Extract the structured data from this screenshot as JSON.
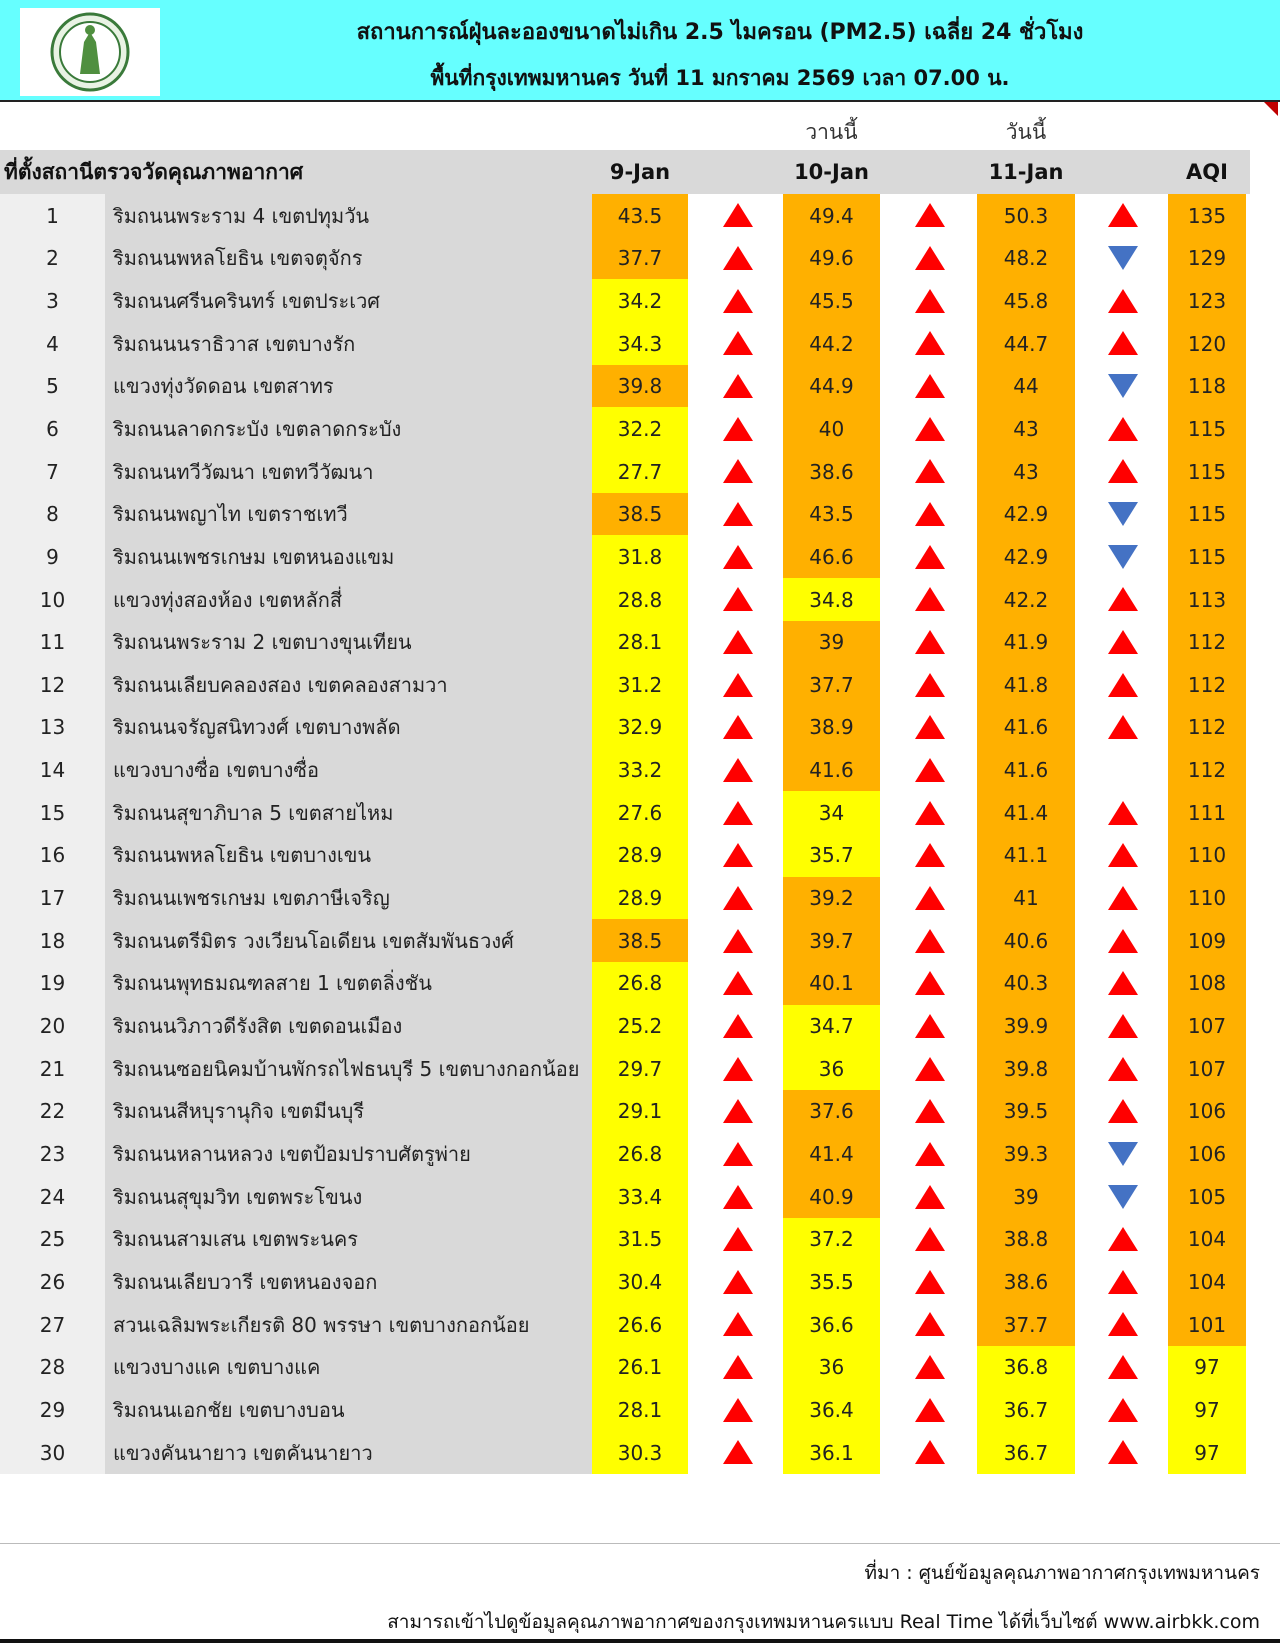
{
  "header": {
    "title": "สถานการณ์ฝุ่นละอองขนาดไม่เกิน 2.5 ไมครอน (PM2.5) เฉลี่ย 24 ชั่วโมง",
    "subtitle": "พื้นที่กรุงเทพมหานคร วันที่ 11 มกราคม 2569 เวลา 07.00 น."
  },
  "table": {
    "day_labels": [
      "วานนี้",
      "วันนี้"
    ],
    "columns": [
      "ที่ตั้งสถานีตรวจวัดคุณภาพอากาศ",
      "9-Jan",
      "10-Jan",
      "11-Jan",
      "AQI"
    ],
    "rows": [
      [
        1,
        "ริมถนนพระราม 4 เขตปทุมวัน",
        43.5,
        49.4,
        50.3,
        135
      ],
      [
        2,
        "ริมถนนพหลโยธิน เขตจตุจักร",
        37.7,
        49.6,
        48.2,
        129
      ],
      [
        3,
        "ริมถนนศรีนครินทร์ เขตประเวศ",
        34.2,
        45.5,
        45.8,
        123
      ],
      [
        4,
        "ริมถนนนราธิวาส เขตบางรัก",
        34.3,
        44.2,
        44.7,
        120
      ],
      [
        5,
        "แขวงทุ่งวัดดอน เขตสาทร",
        39.8,
        44.9,
        44,
        118
      ],
      [
        6,
        "ริมถนนลาดกระบัง เขตลาดกระบัง",
        32.2,
        40,
        43,
        115
      ],
      [
        7,
        "ริมถนนทวีวัฒนา เขตทวีวัฒนา",
        27.7,
        38.6,
        43,
        115
      ],
      [
        8,
        "ริมถนนพญาไท เขตราชเทวี",
        38.5,
        43.5,
        42.9,
        115
      ],
      [
        9,
        "ริมถนนเพชรเกษม เขตหนองแขม",
        31.8,
        46.6,
        42.9,
        115
      ],
      [
        10,
        "แขวงทุ่งสองห้อง เขตหลักสี่",
        28.8,
        34.8,
        42.2,
        113
      ],
      [
        11,
        "ริมถนนพระราม 2 เขตบางขุนเทียน",
        28.1,
        39,
        41.9,
        112
      ],
      [
        12,
        "ริมถนนเลียบคลองสอง เขตคลองสามวา",
        31.2,
        37.7,
        41.8,
        112
      ],
      [
        13,
        "ริมถนนจรัญสนิทวงศ์ เขตบางพลัด",
        32.9,
        38.9,
        41.6,
        112
      ],
      [
        14,
        "แขวงบางซื่อ เขตบางซื่อ",
        33.2,
        41.6,
        41.6,
        112
      ],
      [
        15,
        "ริมถนนสุขาภิบาล 5 เขตสายไหม",
        27.6,
        34,
        41.4,
        111
      ],
      [
        16,
        "ริมถนนพหลโยธิน เขตบางเขน",
        28.9,
        35.7,
        41.1,
        110
      ],
      [
        17,
        "ริมถนนเพชรเกษม เขตภาษีเจริญ",
        28.9,
        39.2,
        41,
        110
      ],
      [
        18,
        "ริมถนนตรีมิตร วงเวียนโอเดียน เขตสัมพันธวงศ์",
        38.5,
        39.7,
        40.6,
        109
      ],
      [
        19,
        "ริมถนนพุทธมณฑลสาย 1 เขตตลิ่งชัน",
        26.8,
        40.1,
        40.3,
        108
      ],
      [
        20,
        "ริมถนนวิภาวดีรังสิต เขตดอนเมือง",
        25.2,
        34.7,
        39.9,
        107
      ],
      [
        21,
        "ริมถนนซอยนิคมบ้านพักรถไฟธนบุรี 5 เขตบางกอกน้อย",
        29.7,
        36,
        39.8,
        107
      ],
      [
        22,
        "ริมถนนสีหบุรานุกิจ เขตมีนบุรี",
        29.1,
        37.6,
        39.5,
        106
      ],
      [
        23,
        "ริมถนนหลานหลวง เขตป้อมปราบศัตรูพ่าย",
        26.8,
        41.4,
        39.3,
        106
      ],
      [
        24,
        "ริมถนนสุขุมวิท เขตพระโขนง",
        33.4,
        40.9,
        39,
        105
      ],
      [
        25,
        "ริมถนนสามเสน เขตพระนคร",
        31.5,
        37.2,
        38.8,
        104
      ],
      [
        26,
        "ริมถนนเลียบวารี เขตหนองจอก",
        30.4,
        35.5,
        38.6,
        104
      ],
      [
        27,
        "สวนเฉลิมพระเกียรติ 80 พรรษา  เขตบางกอกน้อย",
        26.6,
        36.6,
        37.7,
        101
      ],
      [
        28,
        "แขวงบางแค เขตบางแค",
        26.1,
        36,
        36.8,
        97
      ],
      [
        29,
        "ริมถนนเอกชัย เขตบางบอน",
        28.1,
        36.4,
        36.7,
        97
      ],
      [
        30,
        "แขวงคันนายาว เขตคันนายาว",
        30.3,
        36.1,
        36.7,
        97
      ]
    ]
  },
  "footer": {
    "source": "ที่มา : ศูนย์ข้อมูลคุณภาพอากาศกรุงเทพมหานคร",
    "note": "สามารถเข้าไปดูข้อมูลคุณภาพอากาศของกรุงเทพมหานครแบบ Real Time ได้ที่เว็บไซต์ www.airbkk.com"
  }
}
